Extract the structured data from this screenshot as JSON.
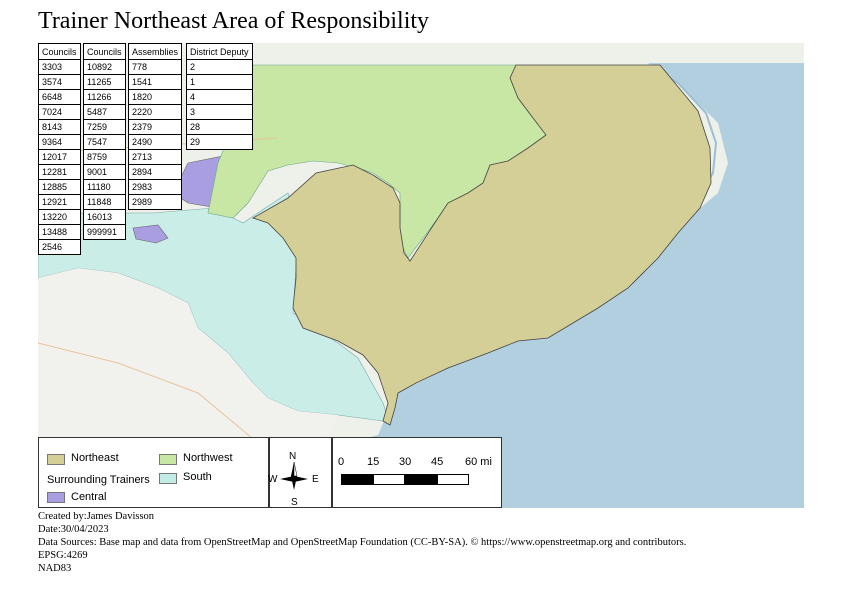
{
  "title": "Trainer Northeast Area of Responsibility",
  "tables": {
    "councils_a": {
      "header": "Councils",
      "rows": [
        "3303",
        "3574",
        "6648",
        "7024",
        "8143",
        "9364",
        "12017",
        "12281",
        "12885",
        "12921",
        "13220",
        "13488",
        "2546"
      ]
    },
    "councils_b": {
      "header": "Councils",
      "rows": [
        "10892",
        "11265",
        "11266",
        "5487",
        "7259",
        "7547",
        "8759",
        "9001",
        "11180",
        "11848",
        "16013",
        "999991"
      ]
    },
    "assemblies": {
      "header": "Assemblies",
      "rows": [
        "778",
        "1541",
        "1820",
        "2220",
        "2379",
        "2490",
        "2713",
        "2894",
        "2983",
        "2989"
      ]
    },
    "district_deputy": {
      "header": "District Deputy",
      "rows": [
        "2",
        "1",
        "4",
        "3",
        "28",
        "29"
      ]
    }
  },
  "legend": {
    "northeast": "Northeast",
    "northwest": "Northwest",
    "surrounding_heading": "Surrounding Trainers",
    "south": "South",
    "central": "Central",
    "colors": {
      "northeast": "#d4cf96",
      "northwest": "#c8e6a4",
      "south": "#c4ece6",
      "central": "#a99ee0"
    }
  },
  "compass": {
    "n": "N",
    "s": "S",
    "e": "E",
    "w": "W"
  },
  "scale": {
    "ticks": [
      "0",
      "15",
      "30",
      "45",
      "60 mi"
    ]
  },
  "footer": {
    "created_by": "Created by:James Davisson",
    "date": "Date:30/04/2023",
    "sources": "Data Sources:  Base map and data from OpenStreetMap and OpenStreetMap Foundation (CC-BY-SA). © https://www.openstreetmap.org and contributors.",
    "epsg": "EPSG:4269",
    "datum": "NAD83"
  }
}
